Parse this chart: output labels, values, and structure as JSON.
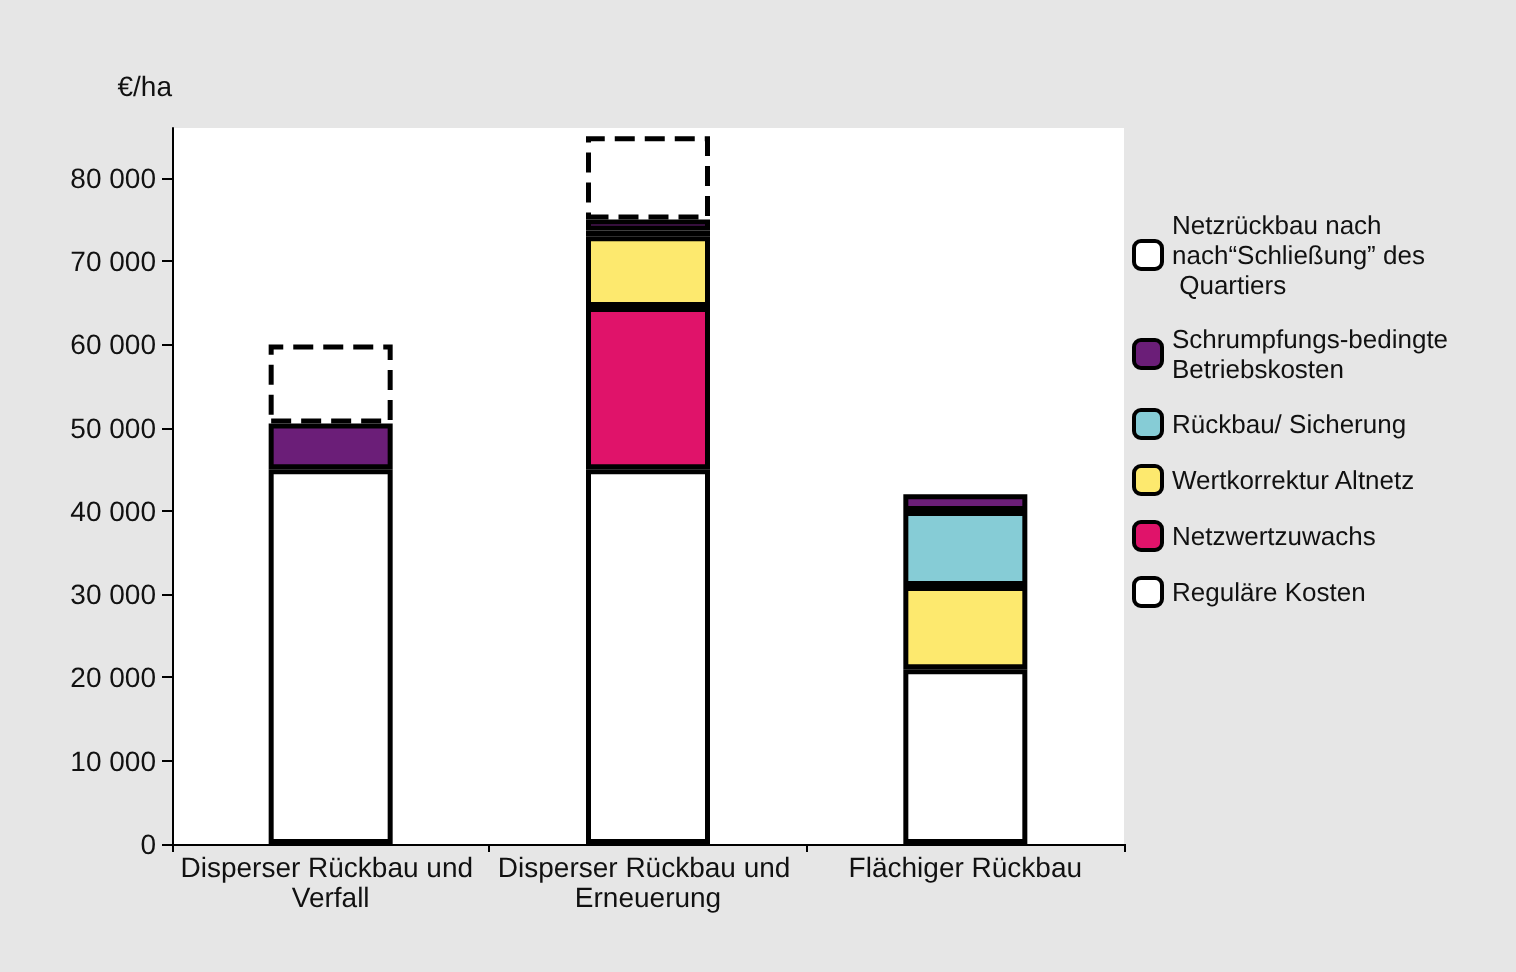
{
  "chart_data": {
    "type": "bar",
    "stacked": true,
    "ylabel": "€/ha",
    "categories": [
      "Disperser Rückbau und Verfall",
      "Disperser Rückbau und Erneuerung",
      "Flächiger Rückbau"
    ],
    "series": [
      {
        "name": "Reguläre Kosten",
        "color": "#ffffff",
        "values": [
          45000,
          45000,
          21000
        ]
      },
      {
        "name": "Netzwertzuwachs",
        "color": "#e0136a",
        "values": [
          null,
          19500,
          null
        ]
      },
      {
        "name": "Wertkorrektur Altnetz",
        "color": "#fde96e",
        "values": [
          null,
          8500,
          10000
        ]
      },
      {
        "name": "Rückbau/ Sicherung",
        "color": "#86ccd6",
        "values": [
          null,
          700,
          9000
        ]
      },
      {
        "name": "Schrumpfungs-bedingte Betriebskosten",
        "color": "#6b1e78",
        "values": [
          5500,
          1300,
          2000
        ]
      },
      {
        "name": "Netzrückbau nach nach“Schließung” des Quartiers",
        "color": "#ffffff",
        "line_style": "dashed",
        "values": [
          9500,
          10000,
          null
        ]
      }
    ],
    "ylim": [
      0,
      86000
    ],
    "yticks": [
      {
        "value": 0,
        "label": "0"
      },
      {
        "value": 10000,
        "label": "10 000"
      },
      {
        "value": 20000,
        "label": "20 000"
      },
      {
        "value": 30000,
        "label": "30 000"
      },
      {
        "value": 40000,
        "label": "40 000"
      },
      {
        "value": 50000,
        "label": "50 000"
      },
      {
        "value": 60000,
        "label": "60 000"
      },
      {
        "value": 70000,
        "label": "70 000"
      },
      {
        "value": 80000,
        "label": "80 000"
      }
    ],
    "grid": false,
    "legend": "right"
  }
}
